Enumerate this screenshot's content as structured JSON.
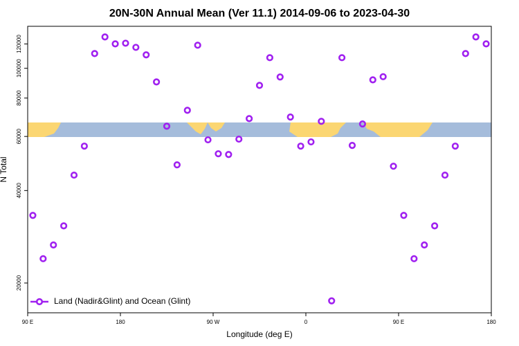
{
  "chart_data": {
    "type": "scatter",
    "title": "20N-30N Annual Mean (Ver 11.1)   2014-09-06 to 2023-04-30",
    "x_label": "Longitude (deg E)",
    "y_label": "N Total",
    "xlim": [
      90,
      540
    ],
    "ylim": [
      16000,
      137000
    ],
    "log_y": true,
    "xticks": [
      {
        "value": 90,
        "label": "90 E"
      },
      180,
      {
        "value": 270,
        "label": "90 W"
      },
      {
        "value": 360,
        "label": "0"
      },
      {
        "value": 450,
        "label": "90 E"
      },
      {
        "value": 540,
        "label": "180"
      }
    ],
    "yticks": [
      20000,
      40000,
      60000,
      80000,
      100000,
      120000
    ],
    "legend_loc": "lower left",
    "series": [
      {
        "name": "Land (Nadir&Glint) and Ocean (Glint)",
        "color": "#a020f0",
        "x": [
          95,
          105,
          115,
          125,
          135,
          145,
          155,
          165,
          175,
          185,
          195,
          205,
          215,
          225,
          235,
          245,
          255,
          265,
          275,
          285,
          295,
          305,
          315,
          325,
          335,
          345,
          355,
          365,
          375,
          385,
          395,
          405,
          415,
          425,
          435,
          445,
          455,
          465,
          475,
          485,
          495,
          505,
          515,
          525,
          535
        ],
        "values": [
          33200,
          24000,
          26600,
          30700,
          44900,
          55800,
          111700,
          126500,
          120100,
          120700,
          117000,
          110600,
          90300,
          64800,
          48500,
          73000,
          118900,
          58500,
          52700,
          52400,
          58800,
          68600,
          88000,
          108300,
          93700,
          69400,
          55800,
          57600,
          67200,
          17500,
          108300,
          56100,
          65900,
          91700,
          93900,
          48000,
          33200,
          24000,
          26600,
          30700,
          44900,
          55800,
          111700,
          126500,
          120100
        ]
      }
    ]
  }
}
